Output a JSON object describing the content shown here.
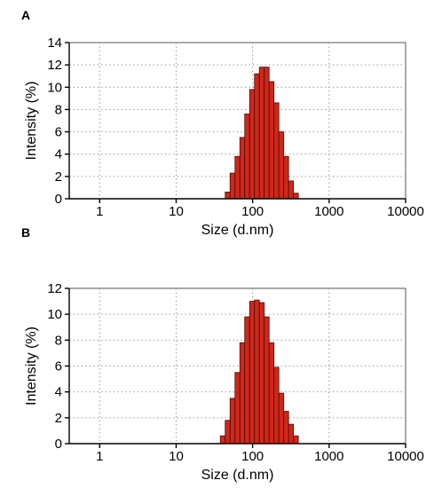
{
  "chart_data": [
    {
      "type": "bar",
      "panel_label": "A",
      "xlabel": "Size (d.nm)",
      "ylabel": "Intensity (%)",
      "x_scale": "log",
      "xlim": [
        0.4,
        10000
      ],
      "ylim": [
        0,
        14
      ],
      "x_ticks": [
        "1",
        "10",
        "100",
        "1000",
        "10000"
      ],
      "y_ticks": [
        "0",
        "2",
        "4",
        "6",
        "8",
        "10",
        "12",
        "14"
      ],
      "grid": true,
      "bar_color": "#d0271a",
      "bins": [
        {
          "x0": 43.8,
          "x1": 50.7,
          "value": 0.6
        },
        {
          "x0": 50.7,
          "x1": 58.8,
          "value": 2.3
        },
        {
          "x0": 58.8,
          "x1": 68.1,
          "value": 3.8
        },
        {
          "x0": 68.1,
          "x1": 78.8,
          "value": 5.5
        },
        {
          "x0": 78.8,
          "x1": 91.3,
          "value": 7.6
        },
        {
          "x0": 91.3,
          "x1": 105.7,
          "value": 9.8
        },
        {
          "x0": 105.7,
          "x1": 122.4,
          "value": 11.2
        },
        {
          "x0": 122.4,
          "x1": 141.8,
          "value": 11.8
        },
        {
          "x0": 141.8,
          "x1": 164.2,
          "value": 11.8
        },
        {
          "x0": 164.2,
          "x1": 190.1,
          "value": 10.5
        },
        {
          "x0": 190.1,
          "x1": 220.2,
          "value": 8.6
        },
        {
          "x0": 220.2,
          "x1": 255.0,
          "value": 6.0
        },
        {
          "x0": 255.0,
          "x1": 295.3,
          "value": 3.8
        },
        {
          "x0": 295.3,
          "x1": 342.0,
          "value": 1.6
        },
        {
          "x0": 342.0,
          "x1": 396.1,
          "value": 0.5
        }
      ]
    },
    {
      "type": "bar",
      "panel_label": "B",
      "xlabel": "Size (d.nm)",
      "ylabel": "Intensity (%)",
      "x_scale": "log",
      "xlim": [
        0.4,
        10000
      ],
      "ylim": [
        0,
        12
      ],
      "x_ticks": [
        "1",
        "10",
        "100",
        "1000",
        "10000"
      ],
      "y_ticks": [
        "0",
        "2",
        "4",
        "6",
        "8",
        "10",
        "12"
      ],
      "grid": true,
      "bar_color": "#d0271a",
      "bins": [
        {
          "x0": 37.8,
          "x1": 43.8,
          "value": 0.6
        },
        {
          "x0": 43.8,
          "x1": 50.7,
          "value": 1.8
        },
        {
          "x0": 50.7,
          "x1": 58.8,
          "value": 3.5
        },
        {
          "x0": 58.8,
          "x1": 68.1,
          "value": 5.5
        },
        {
          "x0": 68.1,
          "x1": 78.8,
          "value": 7.8
        },
        {
          "x0": 78.8,
          "x1": 91.3,
          "value": 9.8
        },
        {
          "x0": 91.3,
          "x1": 105.7,
          "value": 11.0
        },
        {
          "x0": 105.7,
          "x1": 122.4,
          "value": 11.1
        },
        {
          "x0": 122.4,
          "x1": 141.8,
          "value": 10.9
        },
        {
          "x0": 141.8,
          "x1": 164.2,
          "value": 9.8
        },
        {
          "x0": 164.2,
          "x1": 190.1,
          "value": 7.8
        },
        {
          "x0": 190.1,
          "x1": 220.2,
          "value": 5.9
        },
        {
          "x0": 220.2,
          "x1": 255.0,
          "value": 3.9
        },
        {
          "x0": 255.0,
          "x1": 295.3,
          "value": 2.5
        },
        {
          "x0": 295.3,
          "x1": 342.0,
          "value": 1.5
        },
        {
          "x0": 342.0,
          "x1": 396.1,
          "value": 0.6
        }
      ]
    }
  ]
}
